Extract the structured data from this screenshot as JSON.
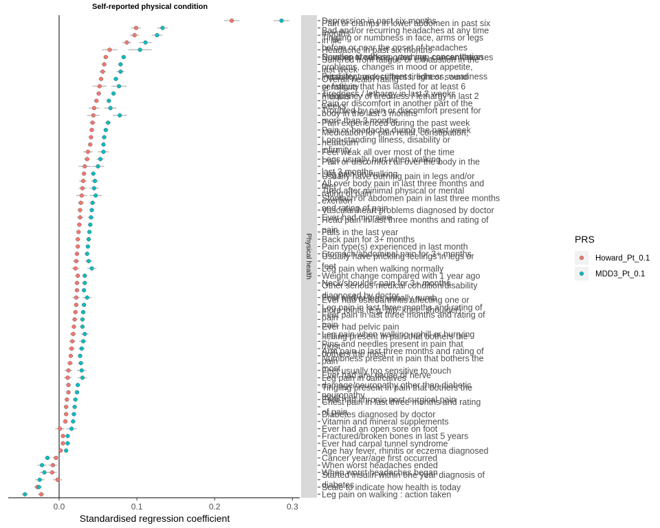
{
  "chart_data": {
    "type": "scatter",
    "title": "Self-reported physical condition",
    "xlabel": "Standardised regression coefficient",
    "xlim": [
      -0.065,
      0.315
    ],
    "xticks": [
      0.0,
      0.1,
      0.2,
      0.3
    ],
    "xtick_labels": [
      "0.0",
      "0.1",
      "0.2",
      "0.3"
    ],
    "facet_label": "Physical health",
    "legend": {
      "title": "PRS",
      "placement": "right"
    },
    "series": [
      {
        "name": "Howard_Pt_0.1",
        "color": "#F8766D"
      },
      {
        "name": "MDD3_Pt_0.1",
        "color": "#00BFC4"
      }
    ],
    "rows": [
      {
        "label": "Depression in past six months",
        "h": 0.222,
        "hl": 0.01,
        "m": 0.286,
        "ml": 0.01
      },
      {
        "label": "Pain or cramps in lower abdomen in past six months",
        "h": 0.099,
        "hl": 0.006,
        "m": 0.133,
        "ml": 0.007
      },
      {
        "label": "Bad and/or recurring headaches at any time in life",
        "h": 0.097,
        "hl": 0.006,
        "m": 0.126,
        "ml": 0.007
      },
      {
        "label": "Tingling or numbness in face, arms or legs before or near the onset of headaches",
        "h": 0.087,
        "hl": 0.006,
        "m": 0.111,
        "ml": 0.008
      },
      {
        "label": "Headache in past six months",
        "h": 0.065,
        "hl": 0.01,
        "m": 0.104,
        "ml": 0.015
      },
      {
        "label": "Number of self-reported non-cancer illnesses",
        "h": 0.06,
        "hl": 0.003,
        "m": 0.083,
        "ml": 0.003
      },
      {
        "label": "Suffered from fatigue or exhaustion in the last week",
        "h": 0.058,
        "hl": 0.003,
        "m": 0.079,
        "ml": 0.003
      },
      {
        "label": "Develop tiredness, yawning, concentration problems, changes in mood or appetite, irritability, neck stiffness, light or sound sensitivity",
        "h": 0.056,
        "hl": 0.004,
        "m": 0.079,
        "ml": 0.005
      },
      {
        "label": "Overall health rating",
        "h": 0.054,
        "hl": 0.003,
        "m": 0.073,
        "ml": 0.003
      },
      {
        "label": "Persistent or recurrent tiredness, weariness or fatigue that has lasted for at least 6 months",
        "h": 0.052,
        "hl": 0.009,
        "m": 0.077,
        "ml": 0.01
      },
      {
        "label": "Tiredness / lethargy in last 2 weeks",
        "h": 0.051,
        "hl": 0.003,
        "m": 0.07,
        "ml": 0.003
      },
      {
        "label": "Frequency of tiredness / lethargy in last 2 weeks",
        "h": 0.048,
        "hl": 0.003,
        "m": 0.064,
        "ml": 0.003
      },
      {
        "label": "Pain or discomfort in another part of the body in the last 3 months",
        "h": 0.045,
        "hl": 0.007,
        "m": 0.066,
        "ml": 0.008
      },
      {
        "label": "Troubled by pain or discomfort present for more than 3 months",
        "h": 0.044,
        "hl": 0.008,
        "m": 0.078,
        "ml": 0.009
      },
      {
        "label": "Pain experienced during the past week",
        "h": 0.043,
        "hl": 0.004,
        "m": 0.063,
        "ml": 0.004
      },
      {
        "label": "Pain or headache during the past week",
        "h": 0.042,
        "hl": 0.003,
        "m": 0.06,
        "ml": 0.003
      },
      {
        "label": "Medication for pain relief, constipation, heartburn",
        "h": 0.041,
        "hl": 0.003,
        "m": 0.058,
        "ml": 0.003
      },
      {
        "label": "Long-standing illness, disability or infirmity",
        "h": 0.04,
        "hl": 0.003,
        "m": 0.057,
        "ml": 0.003
      },
      {
        "label": "Feel weak all over most of the time",
        "h": 0.037,
        "hl": 0.006,
        "m": 0.057,
        "ml": 0.007
      },
      {
        "label": "Legs usually hurt when walking",
        "h": 0.036,
        "hl": 0.004,
        "m": 0.053,
        "ml": 0.005
      },
      {
        "label": "Pain or discomfort all over the body in the last 3 months",
        "h": 0.033,
        "hl": 0.008,
        "m": 0.05,
        "ml": 0.008
      },
      {
        "label": "Leg pain on walking",
        "h": 0.032,
        "hl": 0.003,
        "m": 0.044,
        "ml": 0.003
      },
      {
        "label": "Usually have burning pain in legs and/or feet",
        "h": 0.031,
        "hl": 0.005,
        "m": 0.046,
        "ml": 0.005
      },
      {
        "label": "All over body pain in last three months and rating of pain",
        "h": 0.03,
        "hl": 0.005,
        "m": 0.045,
        "ml": 0.006
      },
      {
        "label": "Tired after minimal physical or mental exertion",
        "h": 0.029,
        "hl": 0.007,
        "m": 0.047,
        "ml": 0.008
      },
      {
        "label": "Stomach or abdomen pain in last three months and rating of pain",
        "h": 0.028,
        "hl": 0.004,
        "m": 0.043,
        "ml": 0.004
      },
      {
        "label": "Vascular/heart problems diagnosed by doctor",
        "h": 0.027,
        "hl": 0.003,
        "m": 0.042,
        "ml": 0.003
      },
      {
        "label": "Ever had migraine",
        "h": 0.027,
        "hl": 0.004,
        "m": 0.041,
        "ml": 0.004
      },
      {
        "label": "Head pain in last three months and rating of pain",
        "h": 0.026,
        "hl": 0.003,
        "m": 0.04,
        "ml": 0.003
      },
      {
        "label": "Falls in the last year",
        "h": 0.025,
        "hl": 0.003,
        "m": 0.039,
        "ml": 0.003
      },
      {
        "label": "Back pain for 3+ months",
        "h": 0.024,
        "hl": 0.003,
        "m": 0.038,
        "ml": 0.003
      },
      {
        "label": "Pain type(s) experienced in last month",
        "h": 0.024,
        "hl": 0.003,
        "m": 0.037,
        "ml": 0.003
      },
      {
        "label": "Stomach/abdominal pain for 3+ months",
        "h": 0.023,
        "hl": 0.003,
        "m": 0.036,
        "ml": 0.003
      },
      {
        "label": "Usually have prickling feelings in legs or feet",
        "h": 0.022,
        "hl": 0.004,
        "m": 0.038,
        "ml": 0.005
      },
      {
        "label": "Leg pain when walking normally",
        "h": 0.021,
        "hl": 0.005,
        "m": 0.042,
        "ml": 0.006
      },
      {
        "label": "Weight change compared with 1 year ago",
        "h": 0.024,
        "hl": 0.003,
        "m": 0.033,
        "ml": 0.003
      },
      {
        "label": "Neck/shoulder pain for 3+ months",
        "h": 0.023,
        "hl": 0.003,
        "m": 0.033,
        "ml": 0.003
      },
      {
        "label": "Other serious medical condition/disability diagnosed by doctor",
        "h": 0.023,
        "hl": 0.003,
        "m": 0.032,
        "ml": 0.003
      },
      {
        "label": "Feet and/or legs usually numb",
        "h": 0.022,
        "hl": 0.005,
        "m": 0.036,
        "ml": 0.006
      },
      {
        "label": "Ever had osteoarthritis affecting one or more joints (e.g. hip, knee, shoulder)",
        "h": 0.022,
        "hl": 0.003,
        "m": 0.032,
        "ml": 0.003
      },
      {
        "label": "Leg pain in last three months and rating of pain",
        "h": 0.021,
        "hl": 0.003,
        "m": 0.031,
        "ml": 0.003
      },
      {
        "label": "Feet pain in last three months and rating of pain",
        "h": 0.02,
        "hl": 0.003,
        "m": 0.03,
        "ml": 0.003
      },
      {
        "label": "Ever had pelvic pain",
        "h": 0.019,
        "hl": 0.003,
        "m": 0.03,
        "ml": 0.003
      },
      {
        "label": "Leg pain when walking uphill or hurrying",
        "h": 0.018,
        "hl": 0.004,
        "m": 0.033,
        "ml": 0.005
      },
      {
        "label": "Itching present in pain that bothers the most",
        "h": 0.017,
        "hl": 0.004,
        "m": 0.031,
        "ml": 0.005
      },
      {
        "label": "Pins and needles present in pain that bothers the most",
        "h": 0.016,
        "hl": 0.004,
        "m": 0.029,
        "ml": 0.004
      },
      {
        "label": "Arm pain in last three months and rating of pain",
        "h": 0.015,
        "hl": 0.003,
        "m": 0.027,
        "ml": 0.003
      },
      {
        "label": "Numbness present in pain that bothers the most",
        "h": 0.014,
        "hl": 0.004,
        "m": 0.028,
        "ml": 0.004
      },
      {
        "label": "Feet usually too sensitive to touch",
        "h": 0.012,
        "hl": 0.005,
        "m": 0.029,
        "ml": 0.006
      },
      {
        "label": "Leg pain in calf/calves",
        "h": 0.011,
        "hl": 0.005,
        "m": 0.03,
        "ml": 0.006
      },
      {
        "label": "Ever had any cause of nerve damage/neuropathy other than diabetic neuropathy",
        "h": 0.012,
        "hl": 0.003,
        "m": 0.024,
        "ml": 0.003
      },
      {
        "label": "Tingling present in pain that bothers the most",
        "h": 0.012,
        "hl": 0.003,
        "m": 0.023,
        "ml": 0.003
      },
      {
        "label": "Ever had chronic post-surgical pain",
        "h": 0.01,
        "hl": 0.003,
        "m": 0.021,
        "ml": 0.003
      },
      {
        "label": "Chest pain in last three months and rating of pain",
        "h": 0.009,
        "hl": 0.003,
        "m": 0.02,
        "ml": 0.003
      },
      {
        "label": "Diabetes diagnosed by doctor",
        "h": 0.009,
        "hl": 0.003,
        "m": 0.019,
        "ml": 0.003
      },
      {
        "label": "Vitamin and mineral supplements",
        "h": 0.008,
        "hl": 0.003,
        "m": 0.018,
        "ml": 0.003
      },
      {
        "label": "Ever had an open sore on foot",
        "h": 0.001,
        "hl": 0.006,
        "m": 0.016,
        "ml": 0.007
      },
      {
        "label": "Fractured/broken bones in last 5 years",
        "h": 0.005,
        "hl": 0.003,
        "m": 0.011,
        "ml": 0.003
      },
      {
        "label": "Ever had carpal tunnel syndrome",
        "h": 0.005,
        "hl": 0.003,
        "m": 0.011,
        "ml": 0.003
      },
      {
        "label": "Age hay fever, rhinitis or eczema diagnosed",
        "h": 0.002,
        "hl": 0.003,
        "m": 0.009,
        "ml": 0.003
      },
      {
        "label": "Cancer year/age first occurred",
        "h": -0.004,
        "hl": 0.004,
        "m": -0.015,
        "ml": 0.004
      },
      {
        "label": "When worst headaches ended",
        "h": -0.008,
        "hl": 0.006,
        "m": -0.022,
        "ml": 0.006
      },
      {
        "label": "When worst headaches began",
        "h": -0.009,
        "hl": 0.006,
        "m": -0.019,
        "ml": 0.006
      },
      {
        "label": "Started insulin within one year diagnosis of diabetes",
        "h": -0.002,
        "hl": 0.006,
        "m": -0.025,
        "ml": 0.006
      },
      {
        "label": "Scale to indicate how health is today",
        "h": -0.028,
        "hl": 0.004,
        "m": -0.026,
        "ml": 0.004
      },
      {
        "label": "Leg pain on walking : action taken",
        "h": -0.023,
        "hl": 0.004,
        "m": -0.044,
        "ml": 0.004
      }
    ]
  }
}
